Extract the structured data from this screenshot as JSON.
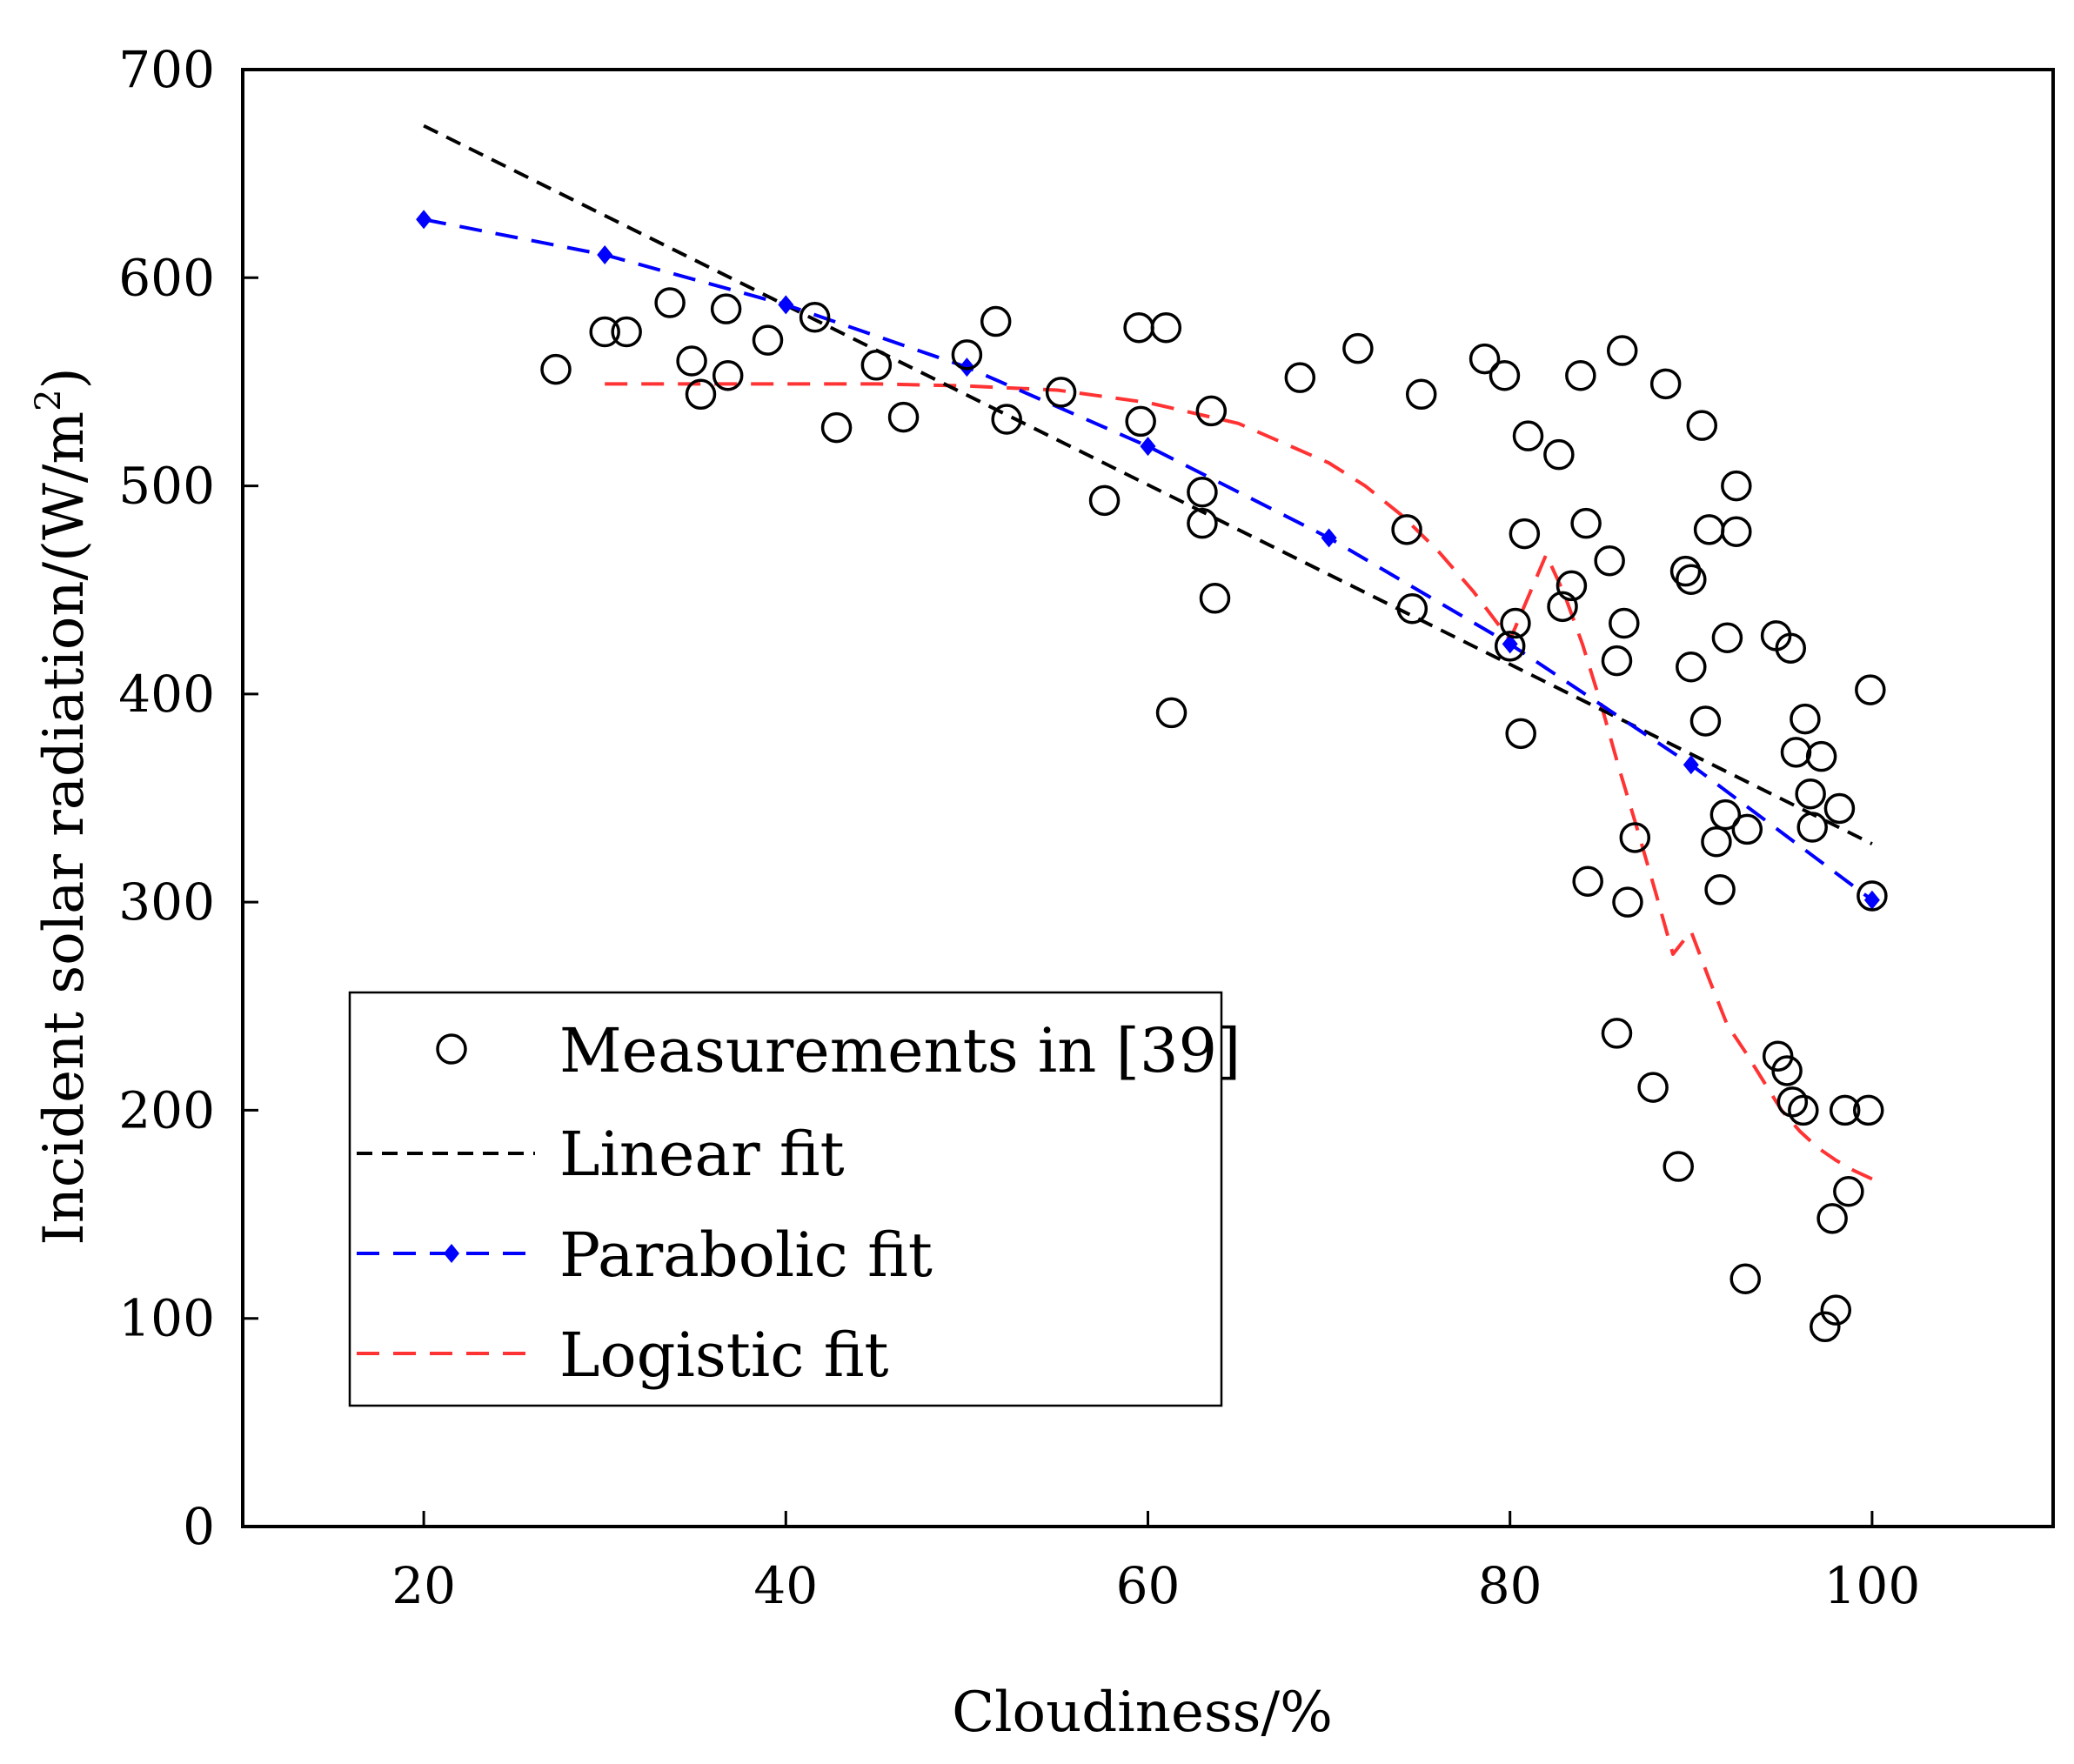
{
  "chart_data": {
    "type": "scatter",
    "title": "",
    "xlabel": "Cloudiness/%",
    "ylabel_text": "Incident solar radiation/(W/m",
    "ylabel_sup": "2",
    "ylabel_close": ")",
    "xlim": [
      10,
      110
    ],
    "ylim": [
      0,
      700
    ],
    "xticks": [
      20,
      40,
      60,
      80,
      100
    ],
    "yticks": [
      0,
      100,
      200,
      300,
      400,
      500,
      600,
      700
    ],
    "grid": false,
    "legend_position": "lower-left",
    "colors": {
      "measurements": "#000000",
      "linear": "#000000",
      "parabolic": "#0000ff",
      "logistic": "#ff3333"
    },
    "measurements": {
      "name": "Measurements in [39]",
      "points": [
        [
          27.3,
          556
        ],
        [
          30.0,
          574
        ],
        [
          31.2,
          574
        ],
        [
          33.6,
          588
        ],
        [
          34.8,
          560
        ],
        [
          35.3,
          544
        ],
        [
          36.7,
          585
        ],
        [
          36.8,
          553
        ],
        [
          39.0,
          570
        ],
        [
          41.6,
          581
        ],
        [
          42.8,
          528
        ],
        [
          45.0,
          558
        ],
        [
          46.5,
          533
        ],
        [
          50.0,
          563
        ],
        [
          51.6,
          579
        ],
        [
          52.2,
          532
        ],
        [
          55.2,
          545
        ],
        [
          57.6,
          493
        ],
        [
          59.5,
          576
        ],
        [
          59.6,
          531
        ],
        [
          61.0,
          576
        ],
        [
          61.3,
          391
        ],
        [
          63.0,
          497
        ],
        [
          63.0,
          482
        ],
        [
          63.5,
          536
        ],
        [
          63.7,
          446
        ],
        [
          68.4,
          552
        ],
        [
          71.6,
          566
        ],
        [
          74.3,
          479
        ],
        [
          74.6,
          441
        ],
        [
          75.1,
          544
        ],
        [
          78.6,
          561
        ],
        [
          79.7,
          553
        ],
        [
          80.0,
          423
        ],
        [
          80.3,
          434
        ],
        [
          80.6,
          381
        ],
        [
          80.8,
          477
        ],
        [
          81.0,
          524
        ],
        [
          82.7,
          515
        ],
        [
          82.9,
          442
        ],
        [
          83.4,
          452
        ],
        [
          83.9,
          553
        ],
        [
          84.2,
          482
        ],
        [
          84.3,
          310
        ],
        [
          85.5,
          464
        ],
        [
          85.9,
          416
        ],
        [
          85.9,
          237
        ],
        [
          86.2,
          565
        ],
        [
          86.3,
          434
        ],
        [
          86.5,
          300
        ],
        [
          86.9,
          331
        ],
        [
          87.9,
          211
        ],
        [
          88.6,
          549
        ],
        [
          89.3,
          173
        ],
        [
          89.7,
          459
        ],
        [
          90.0,
          455
        ],
        [
          90.0,
          413
        ],
        [
          90.6,
          529
        ],
        [
          90.8,
          387
        ],
        [
          91.0,
          479
        ],
        [
          91.4,
          329
        ],
        [
          91.6,
          306
        ],
        [
          91.9,
          342
        ],
        [
          92.0,
          427
        ],
        [
          92.5,
          500
        ],
        [
          92.5,
          478
        ],
        [
          93.1,
          335
        ],
        [
          93.0,
          119
        ],
        [
          94.7,
          428
        ],
        [
          94.8,
          226
        ],
        [
          95.3,
          219
        ],
        [
          95.5,
          422
        ],
        [
          95.6,
          204
        ],
        [
          95.8,
          372
        ],
        [
          96.3,
          388
        ],
        [
          96.2,
          200
        ],
        [
          96.6,
          352
        ],
        [
          96.7,
          336
        ],
        [
          97.2,
          370
        ],
        [
          97.4,
          96
        ],
        [
          97.8,
          148
        ],
        [
          98.0,
          104
        ],
        [
          98.2,
          345
        ],
        [
          98.5,
          200
        ],
        [
          98.7,
          161
        ],
        [
          99.8,
          200
        ],
        [
          99.9,
          402
        ],
        [
          100.0,
          303
        ]
      ]
    },
    "linear": {
      "name": "Linear fit",
      "x": [
        20,
        100
      ],
      "y": [
        673,
        328
      ]
    },
    "parabolic": {
      "name": "Parabolic fit",
      "x": [
        20,
        30,
        40,
        50,
        60,
        70,
        80,
        90,
        100
      ],
      "y": [
        628,
        611,
        587,
        557,
        519,
        475,
        424,
        366,
        301
      ]
    },
    "logistic": {
      "name": "Logistic fit",
      "x": [
        30,
        35,
        40,
        45,
        50,
        55,
        60,
        65,
        70,
        72,
        74,
        76,
        78,
        80,
        82,
        83,
        84,
        85,
        86,
        87,
        88,
        89,
        90,
        91,
        92,
        93,
        94,
        95,
        96,
        97,
        98,
        99,
        100
      ],
      "y": [
        549,
        549,
        549,
        549,
        548,
        546,
        540,
        530,
        511,
        500,
        486,
        469,
        449,
        426,
        467,
        448,
        424,
        396,
        365,
        336,
        306,
        275,
        286,
        263,
        241,
        228,
        214,
        200,
        190,
        182,
        176,
        171,
        167
      ]
    }
  }
}
